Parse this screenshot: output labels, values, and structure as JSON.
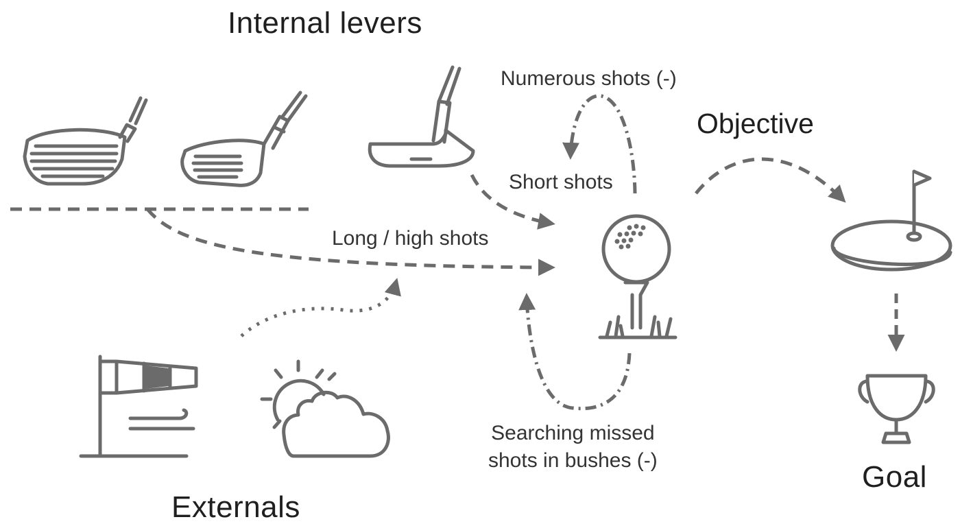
{
  "headings": {
    "internal_levers": "Internal levers",
    "objective": "Objective",
    "externals": "Externals",
    "goal": "Goal"
  },
  "labels": {
    "numerous_shots": "Numerous shots (-)",
    "short_shots": "Short shots",
    "long_high_shots": "Long / high shots",
    "searching_missed": "Searching missed\nshots in bushes (-)"
  },
  "colors": {
    "icon": "#6b6b6b",
    "text": "#1f1f1f",
    "background": "#ffffff"
  },
  "icons": [
    "driver-club-icon",
    "iron-club-icon",
    "putter-icon",
    "golf-ball-on-tee-icon",
    "putting-green-flag-icon",
    "trophy-icon",
    "windsock-icon",
    "sun-behind-cloud-icon"
  ]
}
